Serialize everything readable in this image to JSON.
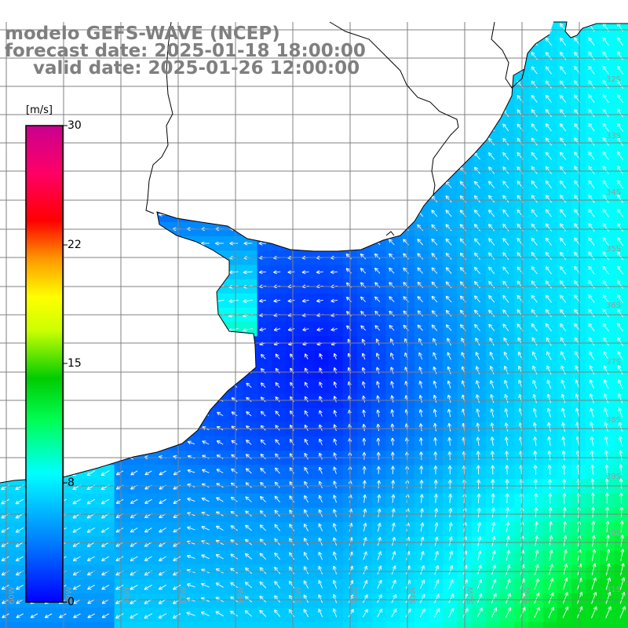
{
  "title": {
    "line1": "modelo GEFS-WAVE (NCEP)",
    "line2": "forecast date: 2025-01-18 18:00:00",
    "line3": "valid date: 2025-01-26 12:00:00"
  },
  "colorbar": {
    "unit": "[m/s]",
    "ticks": [
      {
        "label": "30",
        "value": 30
      },
      {
        "label": "22",
        "value": 22
      },
      {
        "label": "15",
        "value": 15
      },
      {
        "label": "8",
        "value": 8
      },
      {
        "label": "0",
        "value": 0
      }
    ],
    "colors": [
      "#0000ff",
      "#0088ff",
      "#00ffff",
      "#00ff66",
      "#00cc00",
      "#ccff00",
      "#ffff00",
      "#ff9900",
      "#ff0000",
      "#ff0066",
      "#cc0088"
    ]
  },
  "map": {
    "lat_labels": [
      "32S",
      "33S",
      "34S",
      "35S",
      "36S",
      "37S",
      "38S",
      "39S",
      "40S",
      "41S"
    ],
    "lon_labels": [
      "60W",
      "59W",
      "58W",
      "57W",
      "56W",
      "55W",
      "54W",
      "53W",
      "52W",
      "51W"
    ],
    "colors": {
      "land": "#ffffff",
      "coastline": "#000000",
      "grid": "#808080",
      "arrows": "#ffffff"
    }
  }
}
